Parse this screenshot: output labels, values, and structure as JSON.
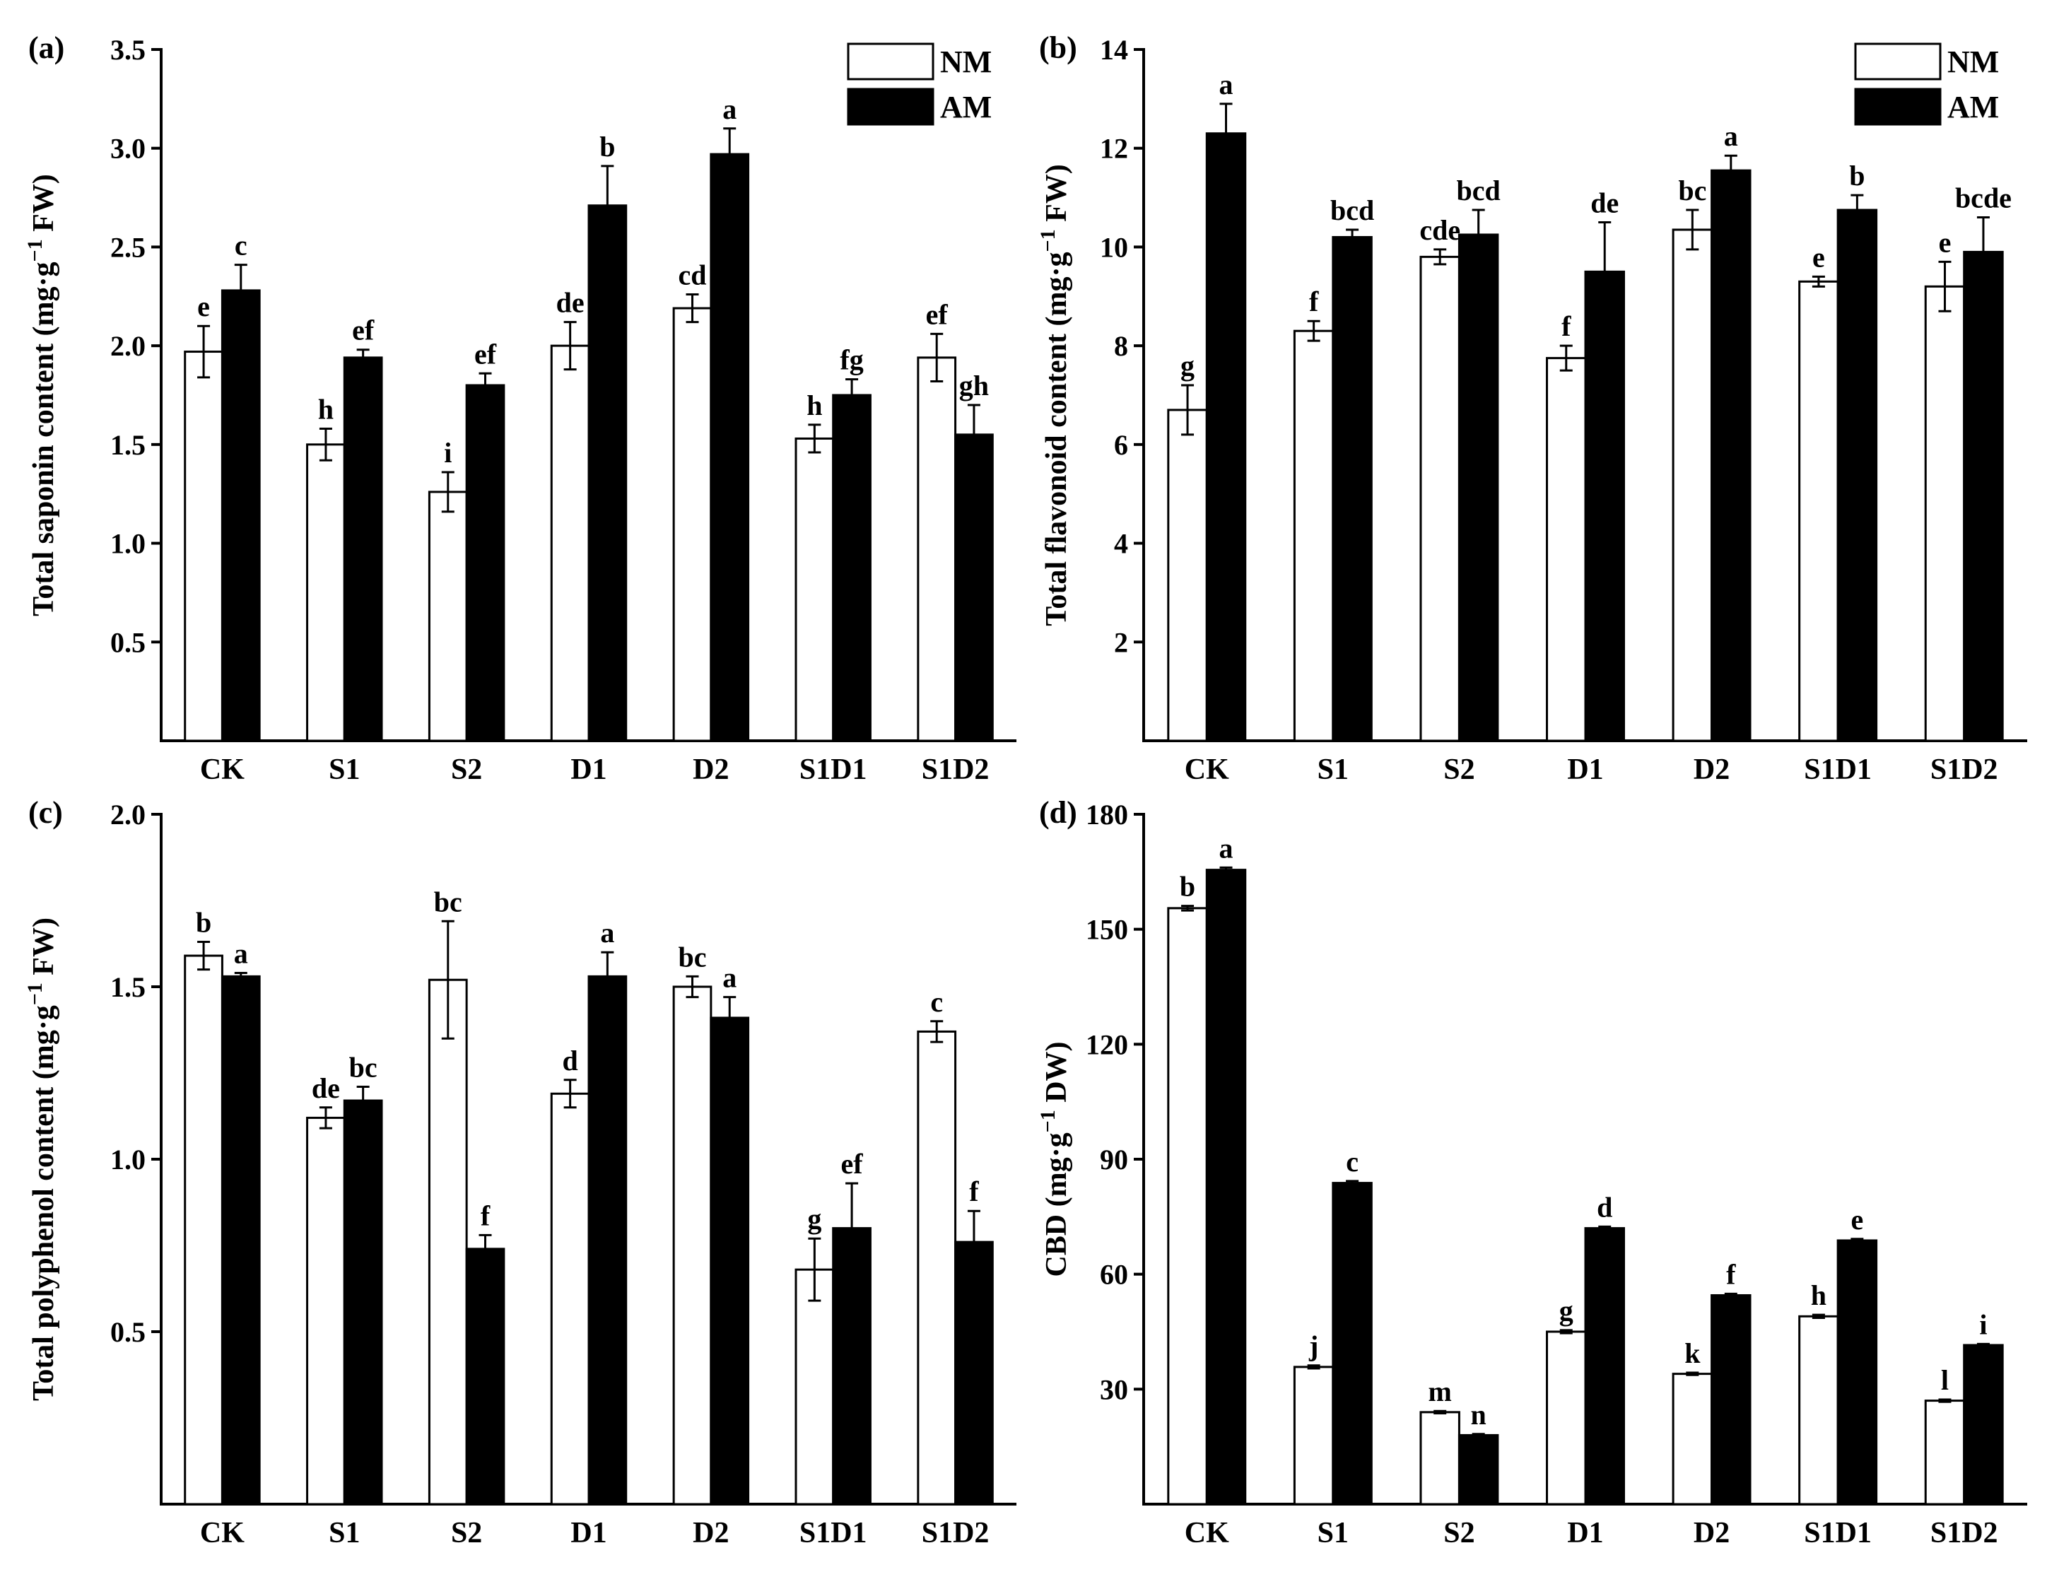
{
  "figure": {
    "categories": [
      "CK",
      "S1",
      "S2",
      "D1",
      "D2",
      "S1D1",
      "S1D2"
    ],
    "legend": {
      "nm_label": "NM",
      "am_label": "AM"
    }
  },
  "colors": {
    "nm": "#ffffff",
    "am": "#000000",
    "stroke": "#000000"
  },
  "chart_data": [
    {
      "type": "bar",
      "panel_label": "(a)",
      "ylabel": "Total saponin content (mg·g",
      "ylabel_sup": "−1",
      "ylabel_unit": " FW)",
      "xlabel": "",
      "ylim": [
        0,
        3.5
      ],
      "yticks": [
        0.5,
        1.0,
        1.5,
        2.0,
        2.5,
        3.0,
        3.5
      ],
      "ytick_labels": [
        "0.5",
        "1.0",
        "1.5",
        "2.0",
        "2.5",
        "3.0",
        "3.5"
      ],
      "legend": true,
      "categories": [
        "CK",
        "S1",
        "S2",
        "D1",
        "D2",
        "S1D1",
        "S1D2"
      ],
      "series": [
        {
          "name": "NM",
          "values": [
            1.97,
            1.5,
            1.26,
            2.0,
            2.19,
            1.53,
            1.94
          ],
          "errors": [
            0.13,
            0.08,
            0.1,
            0.12,
            0.07,
            0.07,
            0.12
          ],
          "letters": [
            "e",
            "h",
            "i",
            "de",
            "cd",
            "h",
            "ef"
          ]
        },
        {
          "name": "AM",
          "values": [
            2.28,
            1.94,
            1.8,
            2.71,
            2.97,
            1.75,
            1.55
          ],
          "errors": [
            0.13,
            0.04,
            0.06,
            0.2,
            0.13,
            0.08,
            0.15
          ],
          "letters": [
            "c",
            "ef",
            "ef",
            "b",
            "a",
            "fg",
            "gh"
          ]
        }
      ]
    },
    {
      "type": "bar",
      "panel_label": "(b)",
      "ylabel": "Total flavonoid content (mg·g",
      "ylabel_sup": "−1",
      "ylabel_unit": " FW)",
      "xlabel": "",
      "ylim": [
        0,
        14
      ],
      "yticks": [
        2,
        4,
        6,
        8,
        10,
        12,
        14
      ],
      "ytick_labels": [
        "2",
        "4",
        "6",
        "8",
        "10",
        "12",
        "14"
      ],
      "legend": true,
      "categories": [
        "CK",
        "S1",
        "S2",
        "D1",
        "D2",
        "S1D1",
        "S1D2"
      ],
      "series": [
        {
          "name": "NM",
          "values": [
            6.7,
            8.3,
            9.8,
            7.75,
            10.35,
            9.3,
            9.2
          ],
          "errors": [
            0.5,
            0.2,
            0.15,
            0.25,
            0.4,
            0.1,
            0.5
          ],
          "letters": [
            "g",
            "f",
            "cde",
            "f",
            "bc",
            "e",
            "e"
          ]
        },
        {
          "name": "AM",
          "values": [
            12.3,
            10.2,
            10.25,
            9.5,
            11.55,
            10.75,
            9.9
          ],
          "errors": [
            0.6,
            0.15,
            0.5,
            1.0,
            0.3,
            0.3,
            0.7
          ],
          "letters": [
            "a",
            "bcd",
            "bcd",
            "de",
            "a",
            "b",
            "bcde"
          ]
        }
      ]
    },
    {
      "type": "bar",
      "panel_label": "(c)",
      "ylabel": "Total polyphenol content (mg·g",
      "ylabel_sup": "−1",
      "ylabel_unit": " FW)",
      "xlabel": "",
      "ylim": [
        0,
        2.0
      ],
      "yticks": [
        0.5,
        1.0,
        1.5,
        2.0
      ],
      "ytick_labels": [
        "0.5",
        "1.0",
        "1.5",
        "2.0"
      ],
      "legend": false,
      "categories": [
        "CK",
        "S1",
        "S2",
        "D1",
        "D2",
        "S1D1",
        "S1D2"
      ],
      "series": [
        {
          "name": "NM",
          "values": [
            1.59,
            1.12,
            1.52,
            1.19,
            1.5,
            0.68,
            1.37
          ],
          "errors": [
            0.04,
            0.03,
            0.17,
            0.04,
            0.03,
            0.09,
            0.03
          ],
          "letters": [
            "b",
            "de",
            "bc",
            "d",
            "bc",
            "g",
            "c"
          ]
        },
        {
          "name": "AM",
          "values": [
            1.53,
            1.17,
            0.74,
            1.53,
            1.41,
            0.8,
            0.76
          ],
          "errors": [
            0.01,
            0.04,
            0.04,
            0.07,
            0.06,
            0.13,
            0.09
          ],
          "letters": [
            "a",
            "bc",
            "f",
            "a",
            "a",
            "ef",
            "f"
          ]
        }
      ]
    },
    {
      "type": "bar",
      "panel_label": "(d)",
      "ylabel": "CBD (mg·g",
      "ylabel_sup": "−1",
      "ylabel_unit": " DW)",
      "xlabel": "",
      "ylim": [
        0,
        180
      ],
      "yticks": [
        30,
        60,
        90,
        120,
        150,
        180
      ],
      "ytick_labels": [
        "30",
        "60",
        "90",
        "120",
        "150",
        "180"
      ],
      "legend": false,
      "categories": [
        "CK",
        "S1",
        "S2",
        "D1",
        "D2",
        "S1D1",
        "S1D2"
      ],
      "series": [
        {
          "name": "NM",
          "values": [
            155.5,
            35.8,
            24.0,
            45.0,
            34.0,
            49.0,
            27.0
          ],
          "errors": [
            0.6,
            0.4,
            0.3,
            0.4,
            0.3,
            0.4,
            0.3
          ],
          "letters": [
            "b",
            "j",
            "m",
            "g",
            "k",
            "h",
            "l"
          ]
        },
        {
          "name": "AM",
          "values": [
            165.5,
            83.8,
            18.0,
            72.0,
            54.5,
            68.8,
            41.5
          ],
          "errors": [
            0.6,
            0.5,
            0.3,
            0.4,
            0.4,
            0.4,
            0.3
          ],
          "letters": [
            "a",
            "c",
            "n",
            "d",
            "f",
            "e",
            "i"
          ]
        }
      ]
    }
  ]
}
